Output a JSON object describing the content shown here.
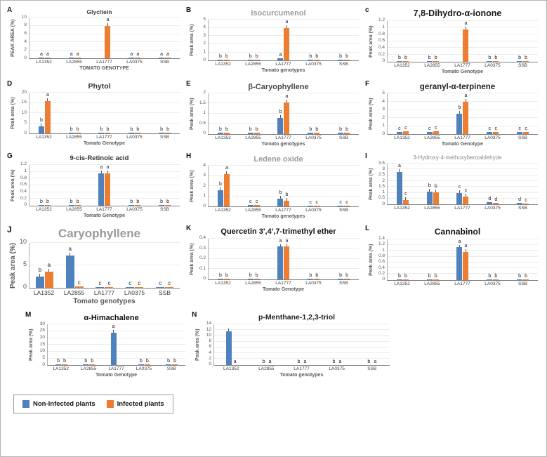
{
  "figure": {
    "legend": [
      {
        "label": "Non-Infected plants",
        "color": "#4f81bd"
      },
      {
        "label": "Infected plants",
        "color": "#ed7d31"
      }
    ]
  },
  "chart_data": [
    {
      "panel": "A",
      "type": "bar",
      "title": "Glycitein",
      "xlabel": "TOMATO GENOTYPE",
      "ylabel": "PEAK AREA (%)",
      "ylim": [
        0,
        10
      ],
      "yticks": [
        0,
        2,
        4,
        6,
        8,
        10
      ],
      "categories": [
        "LA1352",
        "LA2855",
        "LA1777",
        "LA0375",
        "SSB"
      ],
      "series": [
        {
          "name": "Non-Infected plants",
          "values": [
            0.08,
            0.08,
            0,
            0.08,
            0.08
          ],
          "letters": [
            "a",
            "a",
            "",
            "a",
            "a"
          ]
        },
        {
          "name": "Infected plants",
          "values": [
            0.08,
            0.08,
            8.6,
            0.08,
            0.08
          ],
          "letters": [
            "a",
            "a",
            "a",
            "a",
            "a"
          ]
        }
      ]
    },
    {
      "panel": "B",
      "type": "bar",
      "title": "Isocurcumenol",
      "xlabel": "Tomato genotypes",
      "ylabel": "Peak area (%)",
      "ylim": [
        0,
        5
      ],
      "yticks": [
        0,
        1,
        2,
        3,
        4,
        5
      ],
      "categories": [
        "LA1352",
        "LA2855",
        "LA1777",
        "LA0375",
        "SSB"
      ],
      "series": [
        {
          "name": "Non-Infected plants",
          "values": [
            0.05,
            0.05,
            0.3,
            0.05,
            0.05
          ],
          "letters": [
            "b",
            "b",
            "a",
            "b",
            "b"
          ]
        },
        {
          "name": "Infected plants",
          "values": [
            0.05,
            0.05,
            4.3,
            0.05,
            0.05
          ],
          "letters": [
            "b",
            "b",
            "a",
            "b",
            "b"
          ]
        }
      ]
    },
    {
      "panel": "c",
      "type": "bar",
      "title": "7,8-Dihydro-α-ionone",
      "xlabel": "Tomato Genotype",
      "ylabel": "Peak area (%)",
      "ylim": [
        0,
        1.2
      ],
      "yticks": [
        0,
        0.2,
        0.4,
        0.6,
        0.8,
        1,
        1.2
      ],
      "categories": [
        "LA1352",
        "LA2855",
        "LA1777",
        "LA0375",
        "SSB"
      ],
      "series": [
        {
          "name": "Non-Infected plants",
          "values": [
            0.01,
            0.01,
            0,
            0.01,
            0.01
          ],
          "letters": [
            "b",
            "b",
            "",
            "b",
            "b"
          ]
        },
        {
          "name": "Infected plants",
          "values": [
            0.01,
            0.01,
            0.95,
            0.01,
            0.01
          ],
          "letters": [
            "b",
            "b",
            "a",
            "b",
            "b"
          ]
        }
      ]
    },
    {
      "panel": "D",
      "type": "bar",
      "title": "Phytol",
      "xlabel": "Tomato Genotype",
      "ylabel": "Peak area (%)",
      "ylim": [
        0,
        20
      ],
      "yticks": [
        0,
        5,
        10,
        15,
        20
      ],
      "categories": [
        "LA1352",
        "LA2855",
        "LA1777",
        "LA0375",
        "SSB"
      ],
      "series": [
        {
          "name": "Non-Infected plants",
          "values": [
            3.5,
            0.1,
            0.1,
            0.1,
            0.1
          ],
          "letters": [
            "b",
            "b",
            "b",
            "b",
            "b"
          ]
        },
        {
          "name": "Infected plants",
          "values": [
            16.5,
            0.1,
            0.1,
            0.1,
            0.1
          ],
          "letters": [
            "a",
            "b",
            "b",
            "b",
            "b"
          ]
        }
      ]
    },
    {
      "panel": "E",
      "type": "bar",
      "title": "β-Caryophyllene",
      "xlabel": "Tomato genotypes",
      "ylabel": "Peak area (%)",
      "ylim": [
        0,
        2
      ],
      "yticks": [
        0,
        0.5,
        1,
        1.5,
        2
      ],
      "categories": [
        "LA1352",
        "LA2855",
        "LA1777",
        "LA0375",
        "SSB"
      ],
      "series": [
        {
          "name": "Non-Infected plants",
          "values": [
            0.05,
            0.05,
            0.8,
            0.05,
            0.05
          ],
          "letters": [
            "b",
            "b",
            "b",
            "b",
            "b"
          ]
        },
        {
          "name": "Infected plants",
          "values": [
            0.08,
            0.08,
            1.55,
            0.08,
            0.08
          ],
          "letters": [
            "b",
            "b",
            "a",
            "b",
            "b"
          ]
        }
      ]
    },
    {
      "panel": "F",
      "type": "bar",
      "title": "geranyl-α-terpinene",
      "xlabel": "Tomato Genotype",
      "ylabel": "Peak area (%)",
      "ylim": [
        0,
        5
      ],
      "yticks": [
        0,
        1,
        2,
        3,
        4,
        5
      ],
      "categories": [
        "LA1352",
        "LA2855",
        "LA1777",
        "LA0375",
        "SSB"
      ],
      "series": [
        {
          "name": "Non-Infected plants",
          "values": [
            0.3,
            0.3,
            2.5,
            0.3,
            0.3
          ],
          "letters": [
            "c",
            "c",
            "b",
            "c",
            "c"
          ]
        },
        {
          "name": "Infected plants",
          "values": [
            0.35,
            0.35,
            4,
            0.3,
            0.3
          ],
          "letters": [
            "c",
            "c",
            "a",
            "c",
            "c"
          ]
        }
      ]
    },
    {
      "panel": "G",
      "type": "bar",
      "title": "9-cis-Retinoic acid",
      "xlabel": "Tomato Genotype",
      "ylabel": "Peak area (%)",
      "ylim": [
        0,
        1.2
      ],
      "yticks": [
        0,
        0.2,
        0.4,
        0.6,
        0.8,
        1,
        1.2
      ],
      "categories": [
        "LA1352",
        "LA2855",
        "LA1777",
        "LA0375",
        "SSB"
      ],
      "series": [
        {
          "name": "Non-Infected plants",
          "values": [
            0.02,
            0.02,
            0.95,
            0.02,
            0.02
          ],
          "letters": [
            "b",
            "b",
            "a",
            "b",
            "b"
          ]
        },
        {
          "name": "Infected plants",
          "values": [
            0.02,
            0.02,
            1.02,
            0.02,
            0.02
          ],
          "letters": [
            "b",
            "b",
            "a",
            "b",
            "b"
          ]
        }
      ]
    },
    {
      "panel": "H",
      "type": "bar",
      "title": "Ledene oxide",
      "xlabel": "Tomato genotypes",
      "ylabel": "Peak area (%)",
      "ylim": [
        0,
        4
      ],
      "yticks": [
        0,
        1,
        2,
        3,
        4
      ],
      "categories": [
        "LA1352",
        "LA2855",
        "LA1777",
        "LA0375",
        "SSB"
      ],
      "series": [
        {
          "name": "Non-Infected plants",
          "values": [
            1.6,
            0.15,
            0.8,
            0.12,
            0.12
          ],
          "letters": [
            "b",
            "c",
            "b",
            "c",
            "c"
          ]
        },
        {
          "name": "Infected plants",
          "values": [
            3.5,
            0.15,
            0.6,
            0.12,
            0.12
          ],
          "letters": [
            "a",
            "c",
            "b",
            "c",
            "c"
          ]
        }
      ]
    },
    {
      "panel": "I",
      "type": "bar",
      "title": "3-Hydroxy-4-methoxybenzaldehyde",
      "xlabel": "",
      "ylabel": "Peak area (%)",
      "ylim": [
        0,
        3.5
      ],
      "yticks": [
        0,
        0.5,
        1,
        1.5,
        2,
        2.5,
        3,
        3.5
      ],
      "categories": [
        "LA1352",
        "LA2855",
        "LA1777",
        "LA0375",
        "SSB"
      ],
      "series": [
        {
          "name": "Non-Infected plants",
          "values": [
            3,
            1.1,
            0.95,
            0.2,
            0.15
          ],
          "letters": [
            "a",
            "b",
            "c",
            "d",
            "d"
          ]
        },
        {
          "name": "Infected plants",
          "values": [
            0.35,
            1.05,
            0.65,
            0.15,
            0.1
          ],
          "letters": [
            "c",
            "b",
            "c",
            "d",
            "c"
          ]
        }
      ]
    },
    {
      "panel": "J",
      "type": "bar",
      "title": "Caryophyllene",
      "xlabel": "Tomato genotypes",
      "ylabel": "Peak area (%)",
      "ylim": [
        0,
        10
      ],
      "yticks": [
        0,
        5,
        10
      ],
      "categories": [
        "LA1352",
        "LA2855",
        "LA1777",
        "LA0375",
        "SSB"
      ],
      "series": [
        {
          "name": "Non-Infected plants",
          "values": [
            2.5,
            7.2,
            0.2,
            0.15,
            0.1
          ],
          "letters": [
            "b",
            "a",
            "c",
            "c",
            "c"
          ]
        },
        {
          "name": "Infected plants",
          "values": [
            3.6,
            0.3,
            0.15,
            0.1,
            0.1
          ],
          "letters": [
            "a",
            "c",
            "c",
            "c",
            "c"
          ]
        }
      ]
    },
    {
      "panel": "K",
      "type": "bar",
      "title": "Quercetin 3',4',7-trimethyl ether",
      "xlabel": "Tomato Genotype",
      "ylabel": "Peak area (%)",
      "ylim": [
        0,
        0.4
      ],
      "yticks": [
        0,
        0.1,
        0.2,
        0.3,
        0.4
      ],
      "categories": [
        "LA1352",
        "LA2855",
        "LA1777",
        "LA0375",
        "SSB"
      ],
      "series": [
        {
          "name": "Non-Infected plants",
          "values": [
            0.005,
            0.005,
            0.37,
            0.005,
            0.005
          ],
          "letters": [
            "b",
            "b",
            "a",
            "b",
            "b"
          ]
        },
        {
          "name": "Infected plants",
          "values": [
            0.005,
            0.005,
            0.33,
            0.005,
            0.005
          ],
          "letters": [
            "b",
            "b",
            "a",
            "b",
            "b"
          ]
        }
      ]
    },
    {
      "panel": "L",
      "type": "bar",
      "title": "Cannabinol",
      "xlabel": "",
      "ylabel": "Peak area (%)",
      "ylim": [
        0,
        1.4
      ],
      "yticks": [
        0,
        0.2,
        0.4,
        0.6,
        0.8,
        1,
        1.2,
        1.4
      ],
      "categories": [
        "LA1352",
        "LA2855",
        "LA1777",
        "LA0375",
        "SSB"
      ],
      "series": [
        {
          "name": "Non-Infected plants",
          "values": [
            0.01,
            0.01,
            1.25,
            0.01,
            0.01
          ],
          "letters": [
            "b",
            "b",
            "a",
            "b",
            "b"
          ]
        },
        {
          "name": "Infected plants",
          "values": [
            0.01,
            0.01,
            0.95,
            0.01,
            0.01
          ],
          "letters": [
            "b",
            "b",
            "a",
            "b",
            "b"
          ]
        }
      ]
    },
    {
      "panel": "M",
      "type": "bar",
      "title": "α-Himachalene",
      "xlabel": "Tomato Genotype",
      "ylabel": "Peak area (%)",
      "ylim": [
        0,
        30
      ],
      "yticks": [
        0,
        5,
        10,
        15,
        20,
        25,
        30
      ],
      "categories": [
        "LA1352",
        "LA2855",
        "LA1777",
        "LA0375",
        "SSB"
      ],
      "series": [
        {
          "name": "Non-Infected plants",
          "values": [
            0.2,
            0.2,
            27,
            0.2,
            0.2
          ],
          "letters": [
            "b",
            "b",
            "a",
            "b",
            "b"
          ]
        },
        {
          "name": "Infected plants",
          "values": [
            0.2,
            0.2,
            0,
            0.2,
            0.2
          ],
          "letters": [
            "b",
            "b",
            "",
            "b",
            "b"
          ]
        }
      ]
    },
    {
      "panel": "N",
      "type": "bar",
      "title": "p-Menthane-1,2,3-triol",
      "xlabel": "Tomato genotypes",
      "ylabel": "Peak area (%)",
      "ylim": [
        0,
        14
      ],
      "yticks": [
        0,
        2,
        4,
        6,
        8,
        10,
        12,
        14
      ],
      "categories": [
        "LA1352",
        "LA2855",
        "LA1777",
        "LA0375",
        "SSB"
      ],
      "series": [
        {
          "name": "Non-Infected plants",
          "values": [
            11.5,
            0,
            0,
            0,
            0
          ],
          "letters": [
            "",
            "b",
            "b",
            "b",
            "b"
          ]
        },
        {
          "name": "Infected plants",
          "values": [
            0,
            0,
            0,
            0,
            0
          ],
          "letters": [
            "a",
            "a",
            "a",
            "a",
            "a"
          ]
        }
      ]
    }
  ]
}
